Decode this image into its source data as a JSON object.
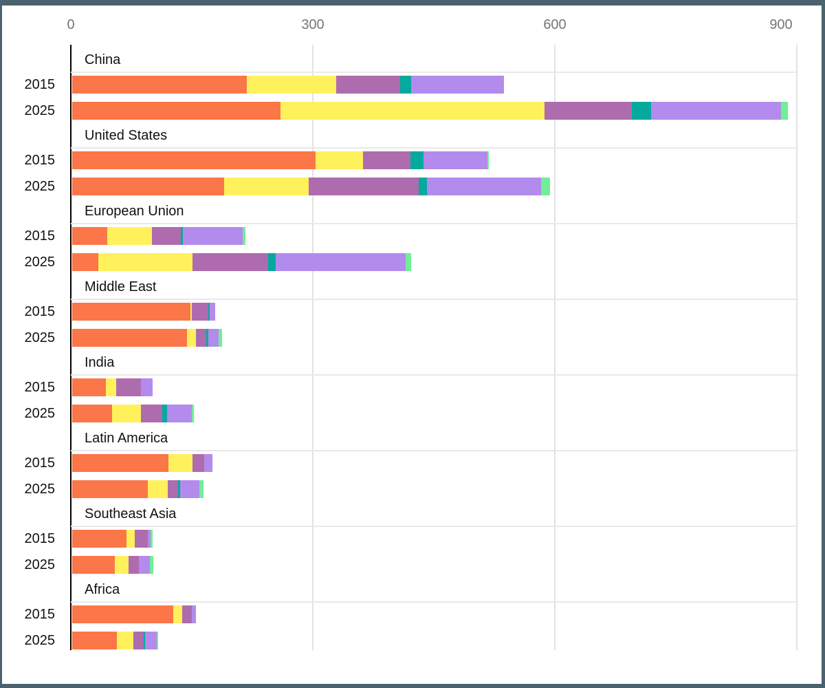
{
  "frame": {
    "color": "#4a626d"
  },
  "axis": {
    "tick_label_color": "#757575",
    "gridline_color": "#e3e3e3",
    "axis_line_color": "#000000"
  },
  "chart_data": {
    "type": "bar",
    "orientation": "horizontal",
    "stacked": true,
    "title": "",
    "xlabel": "",
    "ylabel": "",
    "grid": true,
    "legend": "none",
    "x_axis": {
      "position": "top",
      "min": 0,
      "max": 900,
      "ticks": [
        0,
        300,
        600,
        900
      ],
      "tick_labels": [
        "0",
        "300",
        "600",
        "900"
      ]
    },
    "segments": [
      {
        "name": "segment-orange",
        "color": "#fb7649"
      },
      {
        "name": "segment-yellow",
        "color": "#fff15c"
      },
      {
        "name": "segment-purple",
        "color": "#ae6cae"
      },
      {
        "name": "segment-teal",
        "color": "#03aa9d"
      },
      {
        "name": "segment-violet",
        "color": "#b38bec"
      },
      {
        "name": "segment-green",
        "color": "#71ee96"
      }
    ],
    "groups": [
      {
        "label": "China",
        "rows": [
          {
            "year": "2015",
            "values": [
              217,
              111,
              79,
              14,
              115,
              0
            ],
            "total": 536
          },
          {
            "year": "2025",
            "values": [
              259,
              327,
              108,
              24,
              161,
              9
            ],
            "total": 888
          }
        ]
      },
      {
        "label": "United States",
        "rows": [
          {
            "year": "2015",
            "values": [
              302,
              59,
              59,
              16,
              79,
              2
            ],
            "total": 517
          },
          {
            "year": "2025",
            "values": [
              189,
              105,
              136,
              10,
              142,
              11
            ],
            "total": 593
          }
        ]
      },
      {
        "label": "European Union",
        "rows": [
          {
            "year": "2015",
            "values": [
              44,
              55,
              36,
              3,
              74,
              3
            ],
            "total": 215
          },
          {
            "year": "2025",
            "values": [
              33,
              117,
              93,
              10,
              161,
              7
            ],
            "total": 421
          }
        ]
      },
      {
        "label": "Middle East",
        "rows": [
          {
            "year": "2015",
            "values": [
              147,
              2,
              20,
              2,
              7,
              0
            ],
            "total": 178
          },
          {
            "year": "2025",
            "values": [
              143,
              11,
              13,
              2,
              13,
              4
            ],
            "total": 186
          }
        ]
      },
      {
        "label": "India",
        "rows": [
          {
            "year": "2015",
            "values": [
              42,
              13,
              31,
              0,
              14,
              0
            ],
            "total": 100
          },
          {
            "year": "2025",
            "values": [
              50,
              36,
              26,
              6,
              31,
              2
            ],
            "total": 151
          }
        ]
      },
      {
        "label": "Latin America",
        "rows": [
          {
            "year": "2015",
            "values": [
              120,
              30,
              14,
              0,
              10,
              0
            ],
            "total": 174
          },
          {
            "year": "2025",
            "values": [
              94,
              25,
              13,
              2,
              24,
              5
            ],
            "total": 163
          }
        ]
      },
      {
        "label": "Southeast Asia",
        "rows": [
          {
            "year": "2015",
            "values": [
              68,
              10,
              16,
              0,
              4,
              2
            ],
            "total": 100
          },
          {
            "year": "2025",
            "values": [
              53,
              17,
              13,
              0,
              14,
              4
            ],
            "total": 101
          }
        ]
      },
      {
        "label": "Africa",
        "rows": [
          {
            "year": "2015",
            "values": [
              126,
              11,
              12,
              0,
              5,
              0
            ],
            "total": 154
          },
          {
            "year": "2025",
            "values": [
              56,
              20,
              13,
              2,
              14,
              2
            ],
            "total": 107
          }
        ]
      }
    ]
  }
}
